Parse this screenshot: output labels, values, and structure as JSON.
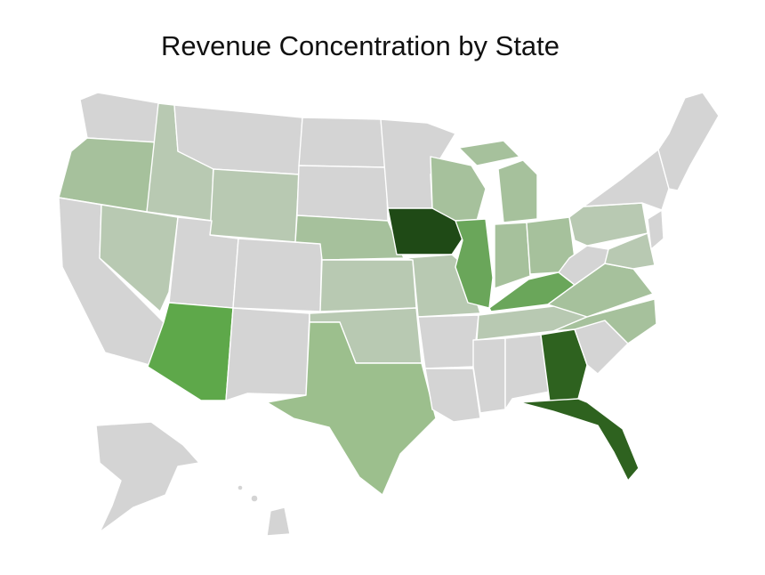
{
  "title": "Revenue Concentration by State",
  "legend": null,
  "colors": {
    "no_data": "#d4d4d4",
    "light": "#b8c9b2",
    "light_med": "#a6c19c",
    "medium": "#9cbf8d",
    "medium_dark": "#6aa65a",
    "bright": "#5ea84a",
    "dark": "#2e621f",
    "darkest": "#1f4a16"
  },
  "highlighted_states": [
    {
      "state": "Iowa",
      "level": "darkest"
    },
    {
      "state": "Florida",
      "level": "dark"
    },
    {
      "state": "Georgia",
      "level": "dark"
    },
    {
      "state": "Arizona",
      "level": "bright"
    },
    {
      "state": "Illinois",
      "level": "medium_dark"
    },
    {
      "state": "Kentucky",
      "level": "medium_dark"
    },
    {
      "state": "Texas",
      "level": "medium"
    },
    {
      "state": "Oregon",
      "level": "light_med"
    },
    {
      "state": "Wisconsin",
      "level": "light_med"
    },
    {
      "state": "Michigan",
      "level": "light_med"
    },
    {
      "state": "Nebraska",
      "level": "light_med"
    },
    {
      "state": "Ohio",
      "level": "light_med"
    },
    {
      "state": "Indiana",
      "level": "light_med"
    },
    {
      "state": "Virginia",
      "level": "light_med"
    },
    {
      "state": "North Carolina",
      "level": "light_med"
    },
    {
      "state": "Pennsylvania",
      "level": "light"
    },
    {
      "state": "Idaho",
      "level": "light"
    },
    {
      "state": "Nevada",
      "level": "light"
    },
    {
      "state": "Wyoming",
      "level": "light"
    },
    {
      "state": "Kansas",
      "level": "light"
    },
    {
      "state": "Oklahoma",
      "level": "light"
    },
    {
      "state": "Missouri",
      "level": "light"
    },
    {
      "state": "Tennessee",
      "level": "light"
    },
    {
      "state": "Maryland",
      "level": "light"
    }
  ]
}
